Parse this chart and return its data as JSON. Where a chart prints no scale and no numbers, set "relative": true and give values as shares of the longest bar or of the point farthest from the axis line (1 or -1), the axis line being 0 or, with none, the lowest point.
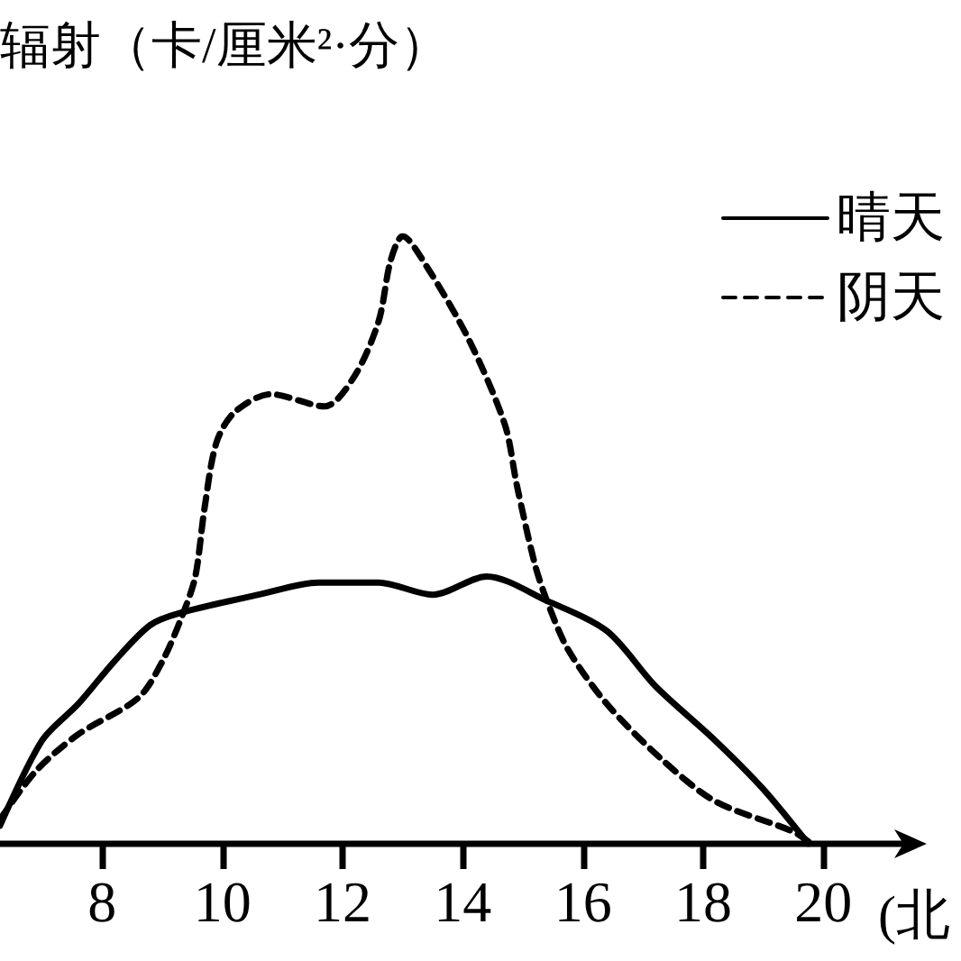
{
  "chart_data": {
    "type": "line",
    "ylabel": "辐射（卡/厘米²·分）",
    "xlabel": "(北",
    "relative": true,
    "xlim": [
      6.3,
      21.3
    ],
    "xticks": [
      8,
      10,
      12,
      14,
      16,
      18,
      20
    ],
    "legend": "top right",
    "marker": "none",
    "grid": false,
    "series": [
      {
        "name": "晴天",
        "color": "#000000",
        "line_style": "solid",
        "x": [
          6.3,
          7.0,
          7.6,
          8.2,
          8.8,
          9.3,
          10.6,
          11.6,
          12.6,
          13.5,
          14.4,
          15.4,
          16.4,
          17.2,
          18.2,
          19.0,
          19.75
        ],
        "values": [
          0.03,
          0.17,
          0.23,
          0.3,
          0.36,
          0.38,
          0.41,
          0.43,
          0.43,
          0.41,
          0.44,
          0.4,
          0.35,
          0.26,
          0.17,
          0.09,
          0
        ]
      },
      {
        "name": "阴天",
        "color": "#000000",
        "line_style": "dashed",
        "x": [
          6.3,
          6.9,
          7.6,
          8.6,
          9.0,
          9.35,
          9.55,
          9.7,
          9.9,
          10.2,
          10.8,
          11.7,
          12.2,
          12.6,
          12.8,
          13.0,
          13.4,
          14.1,
          14.7,
          14.9,
          15.2,
          15.4,
          15.75,
          16.4,
          17.3,
          18.2,
          19.5,
          19.8
        ],
        "values": [
          0.04,
          0.12,
          0.18,
          0.24,
          0.3,
          0.38,
          0.44,
          0.55,
          0.66,
          0.71,
          0.74,
          0.72,
          0.77,
          0.86,
          0.96,
          1,
          0.95,
          0.83,
          0.69,
          0.59,
          0.46,
          0.4,
          0.32,
          0.23,
          0.14,
          0.07,
          0.02,
          0
        ]
      }
    ]
  }
}
